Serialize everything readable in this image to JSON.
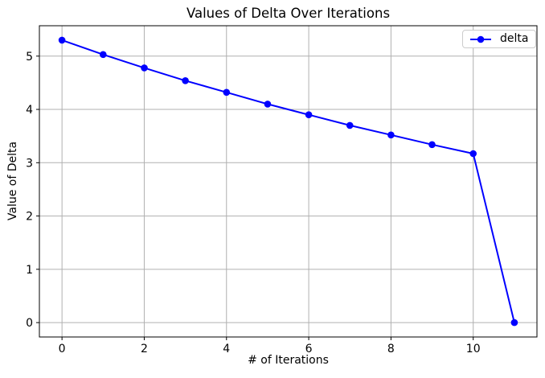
{
  "chart_data": {
    "type": "line",
    "title": "Values of Delta Over Iterations",
    "xlabel": "# of Iterations",
    "ylabel": "Value of Delta",
    "x": [
      0,
      1,
      2,
      3,
      4,
      5,
      6,
      7,
      8,
      9,
      10,
      11
    ],
    "series": [
      {
        "name": "delta",
        "values": [
          5.3,
          5.03,
          4.78,
          4.54,
          4.32,
          4.1,
          3.9,
          3.7,
          3.52,
          3.34,
          3.17,
          0.0
        ],
        "color": "#0000ff",
        "marker": "circle",
        "line_width": 2,
        "marker_radius": 4.3
      }
    ],
    "xlim": [
      -0.55,
      11.55
    ],
    "ylim": [
      -0.27,
      5.57
    ],
    "xticks": [
      0,
      2,
      4,
      6,
      8,
      10
    ],
    "yticks": [
      0,
      1,
      2,
      3,
      4,
      5
    ],
    "grid": true,
    "grid_color": "#b0b0b0",
    "spine_color": "#000000",
    "background_color": "#ffffff",
    "legend": {
      "position": "upper right",
      "entries": [
        "delta"
      ]
    }
  }
}
